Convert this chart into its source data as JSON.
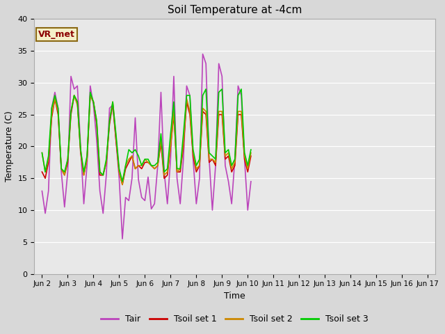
{
  "title": "Soil Temperature at -4cm",
  "xlabel": "Time",
  "ylabel": "Temperature (C)",
  "ylim": [
    0,
    40
  ],
  "xtick_labels": [
    "Jun 2",
    "Jun 3",
    "Jun 4",
    "Jun 5",
    "Jun 6",
    "Jun 7",
    "Jun 8",
    "Jun 9",
    "Jun 10",
    "Jun 11",
    "Jun 12",
    "Jun 13",
    "Jun 14",
    "Jun 15",
    "Jun 16",
    "Jun 17"
  ],
  "xtick_positions": [
    0,
    1,
    2,
    3,
    4,
    5,
    6,
    7,
    8,
    9,
    10,
    11,
    12,
    13,
    14,
    15
  ],
  "background_color": "#d8d8d8",
  "plot_bg_color": "#e8e8e8",
  "legend_label": "VR_met",
  "legend_box_color": "#f5f0c8",
  "legend_box_border": "#8b6914",
  "line_colors": {
    "Tair": "#bb44bb",
    "Tsoil1": "#cc0000",
    "Tsoil2": "#cc8800",
    "Tsoil3": "#00cc00"
  },
  "Tair": [
    13,
    9.5,
    13,
    26,
    28.5,
    26,
    16,
    10.5,
    16,
    31,
    29,
    29.5,
    20,
    11,
    17,
    29.5,
    26.5,
    21,
    13,
    9.5,
    15.5,
    26,
    26.5,
    21,
    15,
    5.5,
    12,
    11.5,
    15,
    24.5,
    14.8,
    12,
    11.5,
    15.2,
    10.2,
    11,
    17,
    28.5,
    16,
    11,
    18,
    31,
    15,
    11,
    18,
    29.5,
    28,
    18,
    11,
    15,
    34.5,
    33,
    18,
    10,
    17,
    33,
    31,
    17,
    14.5,
    11,
    18,
    29.5,
    28,
    18,
    10,
    14.5
  ],
  "Tsoil1": [
    16,
    15,
    17.5,
    24.5,
    27.5,
    25,
    16.5,
    15.5,
    17.5,
    25,
    28,
    27,
    19,
    15.5,
    18,
    28,
    27,
    23.5,
    15.5,
    15.5,
    17.5,
    23.5,
    26.7,
    21,
    16,
    14,
    16.5,
    17.5,
    18.5,
    16.5,
    17,
    16.5,
    17.5,
    17.5,
    17,
    16.5,
    17,
    20.5,
    15,
    15.5,
    20,
    25,
    16,
    16,
    20,
    27,
    25,
    18.5,
    16,
    17,
    25.5,
    25,
    17.5,
    18,
    17,
    25,
    25,
    18,
    18.5,
    16,
    17,
    25,
    25,
    18,
    16,
    18.5
  ],
  "Tsoil2": [
    19,
    16,
    18,
    25,
    27.5,
    25.5,
    16.5,
    15.5,
    18,
    25.5,
    28,
    26.5,
    19.5,
    15.5,
    18,
    28,
    27,
    24,
    16,
    15.5,
    17.5,
    24,
    27,
    21.5,
    16,
    14,
    17,
    18,
    18.5,
    16.5,
    17,
    17,
    18,
    17.5,
    17,
    16.5,
    17,
    21,
    15.5,
    16,
    20,
    25.5,
    16,
    16.5,
    20.5,
    27.5,
    25.5,
    19,
    16.5,
    17,
    26,
    25.5,
    18,
    18,
    17.5,
    25.5,
    25.5,
    18.5,
    19,
    16.5,
    17.5,
    25.5,
    25.5,
    18.5,
    16.5,
    19
  ],
  "Tsoil3": [
    19,
    16,
    18.5,
    26,
    28,
    26,
    16.5,
    16,
    18,
    25.5,
    28,
    27,
    19.5,
    16,
    18.5,
    28.5,
    27,
    24,
    16,
    15.5,
    18,
    24,
    27,
    22,
    16.5,
    14.5,
    17,
    19.5,
    19,
    19.5,
    18.5,
    17,
    18,
    18,
    17,
    17,
    17.5,
    22,
    16,
    16.5,
    22,
    27,
    16.5,
    16.5,
    22,
    28,
    28,
    19.5,
    17,
    18,
    28,
    29,
    19,
    18.5,
    18,
    28.5,
    29,
    19,
    19.5,
    17,
    18,
    28,
    29,
    19,
    17,
    19.5
  ]
}
